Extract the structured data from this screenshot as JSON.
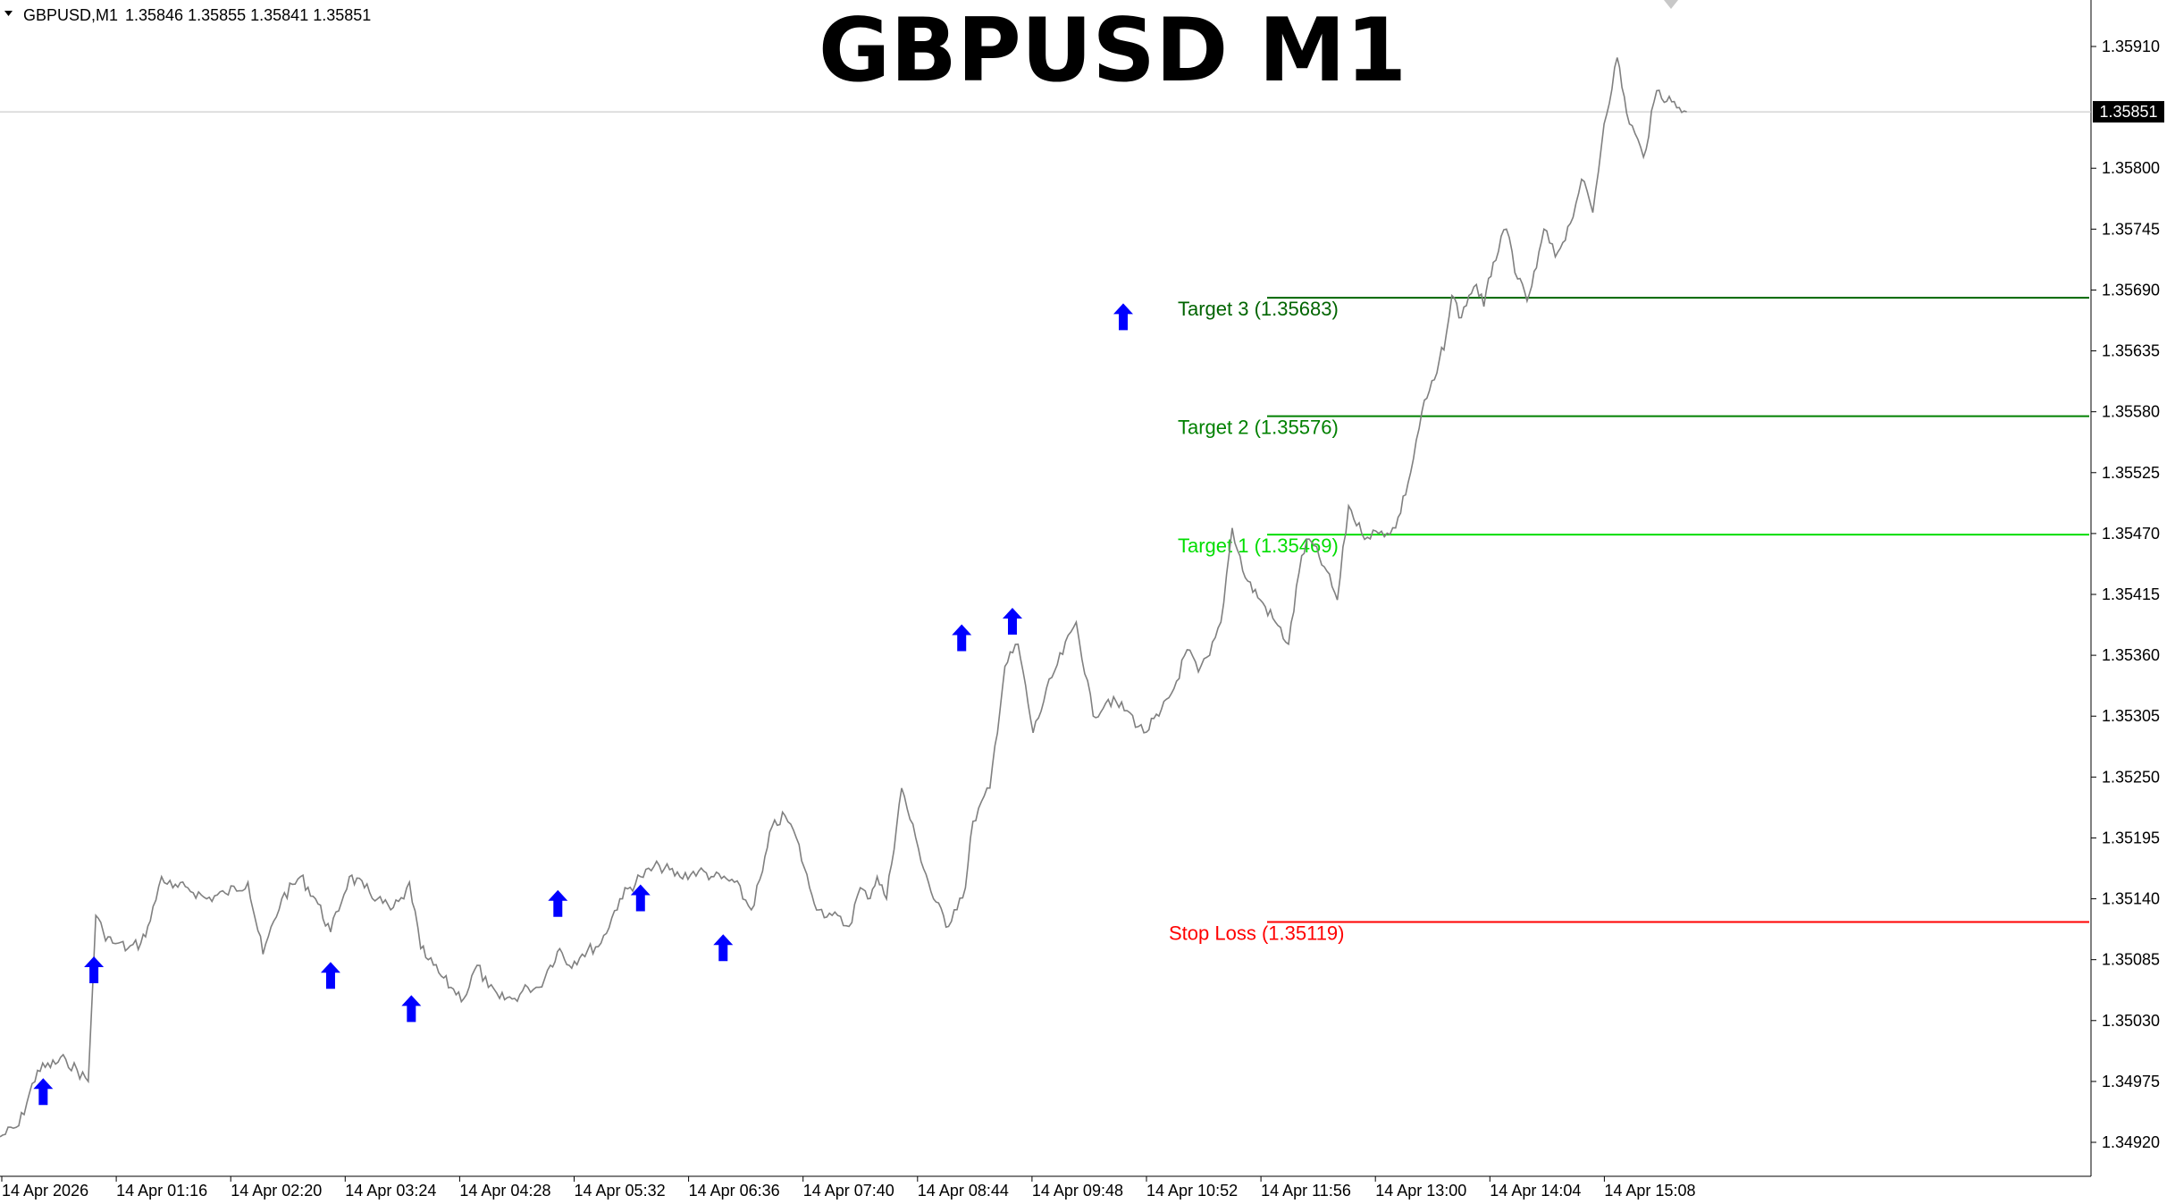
{
  "header": {
    "symbol_label": "GBPUSD,M1",
    "ohlc": "1.35846 1.35855 1.35841 1.35851",
    "title": "GBPUSD M1"
  },
  "colors": {
    "background": "#ffffff",
    "price_line": "#808080",
    "arrow": "#0000ff",
    "target3": "#006400",
    "target2": "#008000",
    "target1": "#00dd00",
    "stop_loss": "#ff0000",
    "current_price_tag": "#000000",
    "axis": "#000000"
  },
  "chart_data": {
    "type": "line",
    "xlabel": "",
    "ylabel": "",
    "ylim": [
      1.3489,
      1.3594
    ],
    "grid": false,
    "current_price": "1.35851",
    "y_ticks": [
      "1.35910",
      "1.35800",
      "1.35745",
      "1.35690",
      "1.35635",
      "1.35580",
      "1.35525",
      "1.35470",
      "1.35415",
      "1.35360",
      "1.35305",
      "1.35250",
      "1.35195",
      "1.35140",
      "1.35085",
      "1.35030",
      "1.34975",
      "1.34920"
    ],
    "x_ticks": [
      "14 Apr 2026",
      "14 Apr 01:16",
      "14 Apr 02:20",
      "14 Apr 03:24",
      "14 Apr 04:28",
      "14 Apr 05:32",
      "14 Apr 06:36",
      "14 Apr 07:40",
      "14 Apr 08:44",
      "14 Apr 09:48",
      "14 Apr 10:52",
      "14 Apr 11:56",
      "14 Apr 13:00",
      "14 Apr 14:04",
      "14 Apr 15:08"
    ],
    "series": [
      {
        "x": [
          0,
          10,
          20,
          35,
          47,
          51,
          55,
          60,
          63,
          68,
          75,
          80,
          86,
          92,
          100,
          110,
          120,
          132,
          140,
          150,
          160,
          168,
          176,
          186,
          194,
          201,
          208,
          215,
          218,
          224,
          228,
          235,
          240,
          247,
          254,
          260,
          266,
          274,
          281,
          287,
          293,
          298,
          303,
          310,
          320,
          330,
          341,
          351,
          362,
          372,
          380,
          391,
          400,
          406,
          411,
          418,
          424,
          431,
          436,
          443,
          452,
          458,
          462,
          467,
          472,
          480,
          489,
          497,
          505,
          508,
          514,
          518,
          527,
          535,
          542,
          550,
          560,
          573,
          582,
          590,
          600,
          609,
          617,
          625,
          632,
          638,
          644,
          650,
          656,
          663,
          671,
          679,
          686,
          693,
          697,
          705,
          712,
          718,
          725,
          734,
          743,
          751,
          757,
          765,
          770,
          773,
          778,
          782,
          786,
          790,
          795,
          802,
          808,
          813,
          818,
          822,
          828,
          836,
          842,
          848,
          854,
          861,
          866,
          875,
          882,
          890,
          898
        ],
        "y": [
          1.34925,
          1.34935,
          1.34985,
          1.34995,
          1.34975,
          1.35125,
          1.3511,
          1.351,
          1.351,
          1.35095,
          1.351,
          1.3512,
          1.3516,
          1.3515,
          1.3515,
          1.3514,
          1.35145,
          1.35155,
          1.3509,
          1.3514,
          1.3516,
          1.3514,
          1.3511,
          1.3516,
          1.3515,
          1.3514,
          1.3513,
          1.3514,
          1.35155,
          1.35095,
          1.35085,
          1.3507,
          1.3506,
          1.3505,
          1.3508,
          1.3506,
          1.3505,
          1.3505,
          1.3506,
          1.3506,
          1.3508,
          1.35095,
          1.3508,
          1.3509,
          1.351,
          1.3514,
          1.3516,
          1.3517,
          1.3516,
          1.35165,
          1.3516,
          1.35155,
          1.3513,
          1.35165,
          1.35205,
          1.35215,
          1.35195,
          1.3515,
          1.3513,
          1.35125,
          1.35115,
          1.3515,
          1.3514,
          1.3516,
          1.3514,
          1.3524,
          1.35185,
          1.3514,
          1.35115,
          1.3513,
          1.3515,
          1.3521,
          1.3524,
          1.3535,
          1.3537,
          1.3529,
          1.3534,
          1.3539,
          1.35305,
          1.3532,
          1.3531,
          1.3529,
          1.35305,
          1.3533,
          1.35365,
          1.35345,
          1.3536,
          1.3539,
          1.35475,
          1.3543,
          1.3541,
          1.3539,
          1.3537,
          1.3545,
          1.35465,
          1.3544,
          1.3541,
          1.35495,
          1.3547,
          1.3547,
          1.35475,
          1.35525,
          1.3558,
          1.35615,
          1.3565,
          1.35685,
          1.35665,
          1.35685,
          1.35695,
          1.35675,
          1.35715,
          1.35745,
          1.357,
          1.3568,
          1.3571,
          1.35745,
          1.3572,
          1.3575,
          1.3579,
          1.3576,
          1.3584,
          1.359,
          1.3585,
          1.3581,
          1.3587,
          1.3586,
          1.35851
        ]
      }
    ],
    "arrows": [
      {
        "x": 23,
        "y": 1.34965
      },
      {
        "x": 50,
        "y": 1.35075
      },
      {
        "x": 176,
        "y": 1.3507
      },
      {
        "x": 219,
        "y": 1.3504
      },
      {
        "x": 297,
        "y": 1.35135
      },
      {
        "x": 341,
        "y": 1.3514
      },
      {
        "x": 385,
        "y": 1.35095
      },
      {
        "x": 512,
        "y": 1.35375
      },
      {
        "x": 539,
        "y": 1.3539
      },
      {
        "x": 598,
        "y": 1.35665
      }
    ],
    "levels": [
      {
        "name": "Target 3",
        "label": "Target 3 (1.35683)",
        "value": 1.35683,
        "color": "#006400"
      },
      {
        "name": "Target 2",
        "label": "Target 2 (1.35576)",
        "value": 1.35576,
        "color": "#008000"
      },
      {
        "name": "Target 1",
        "label": "Target 1 (1.35469)",
        "value": 1.35469,
        "color": "#00dd00"
      },
      {
        "name": "Stop Loss",
        "label": "Stop Loss (1.35119)",
        "value": 1.35119,
        "color": "#ff0000"
      }
    ]
  }
}
